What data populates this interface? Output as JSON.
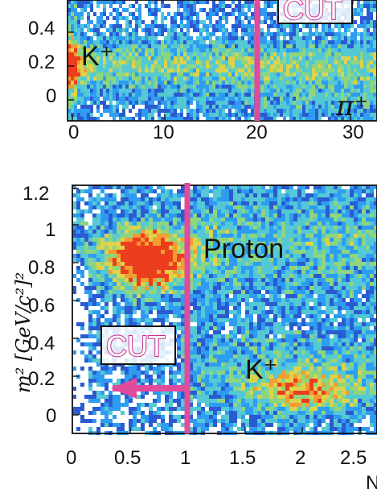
{
  "chart_data": [
    {
      "type": "heatmap",
      "title": "",
      "xlabel": "",
      "ylabel": "",
      "x_ticks": [
        "0",
        "10",
        "20",
        "30"
      ],
      "y_ticks": [
        "0",
        "0.2",
        "0.4"
      ],
      "xlim": [
        0,
        34
      ],
      "ylim": [
        -0.08,
        0.62
      ],
      "cut": {
        "label": "CUT",
        "x": 20
      },
      "labels": [
        {
          "text": "K⁺",
          "x": 1.0,
          "y": 0.2
        },
        {
          "text": "π⁺",
          "x": 29.7,
          "y": -0.05
        }
      ]
    },
    {
      "type": "heatmap",
      "title": "",
      "xlabel": "N",
      "ylabel": "m² [GeV/c²]²",
      "x_ticks": [
        "0",
        "0.5",
        "1",
        "1.5",
        "2",
        "2.5"
      ],
      "y_ticks": [
        "0",
        "0.2",
        "0.4",
        "0.6",
        "0.8",
        "1",
        "1.2"
      ],
      "xlim": [
        0,
        2.75
      ],
      "ylim": [
        -0.08,
        1.22
      ],
      "cut": {
        "label": "CUT",
        "x": 1.0,
        "arrow_from": 1.0,
        "arrow_to": 0.05,
        "arrow_y": 0.14
      },
      "labels": [
        {
          "text": "Proton",
          "x": 1.05,
          "y": 0.9
        },
        {
          "text": "K⁺",
          "x": 1.4,
          "y": 0.2
        }
      ]
    }
  ],
  "colors": {
    "cut_line": "#e24a9c",
    "heat_low": "#1f5bd1",
    "heat_mid": "#63d6a0",
    "heat_high": "#ef3d1f"
  }
}
